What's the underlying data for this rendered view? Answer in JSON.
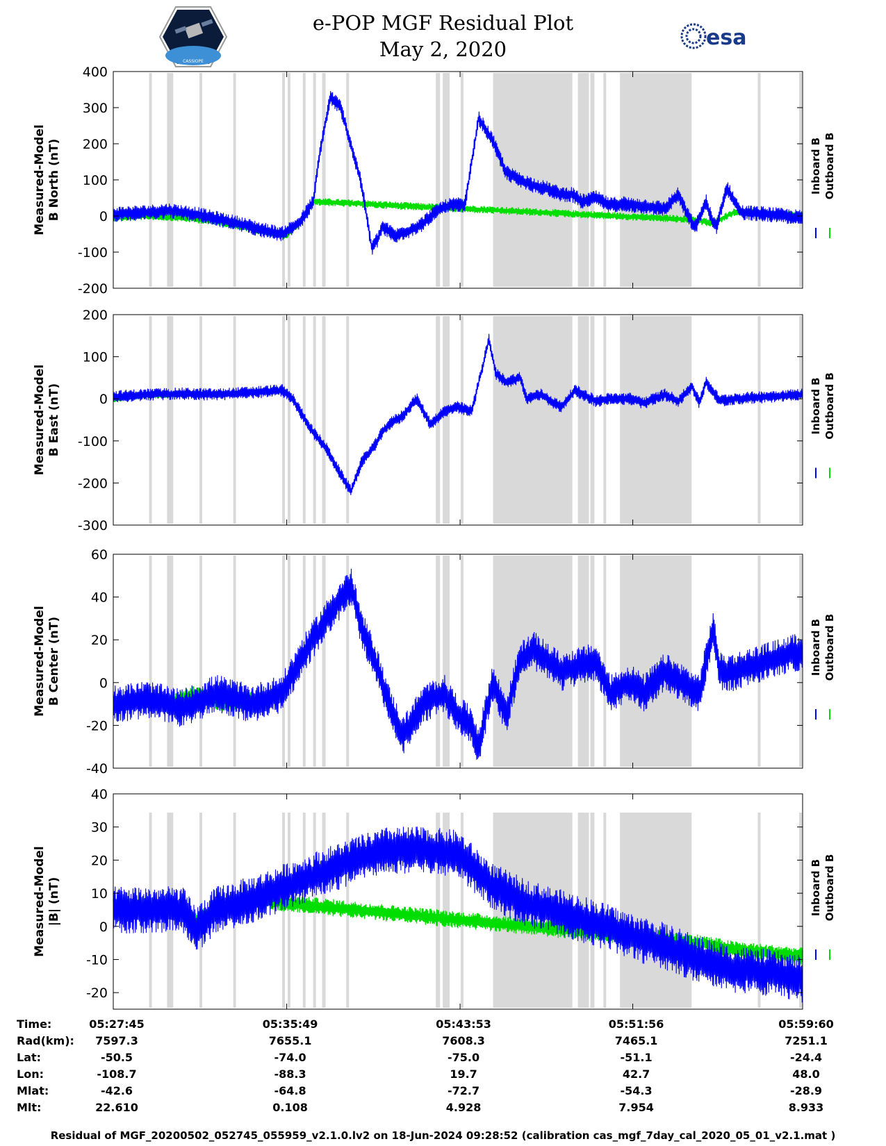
{
  "title": "e-POP MGF Residual Plot",
  "subtitle": "May 2, 2020",
  "esa_logo_text": "esa",
  "mission_logo_text": "CASSIOPE",
  "colors": {
    "inboard": "#0000ff",
    "outboard": "#00dd00",
    "shade": "#d9d9d9"
  },
  "chart_data": [
    {
      "type": "line",
      "ylabel": [
        "Measured-Model",
        "B North (nT)"
      ],
      "ylim": [
        -200,
        400
      ],
      "yticks": [
        -200,
        -100,
        0,
        100,
        200,
        300,
        400
      ],
      "legend": [
        "Inboard B",
        "Outboard B"
      ],
      "series": [
        {
          "name": "Inboard B",
          "x": [
            0,
            0.05,
            0.08,
            0.12,
            0.18,
            0.22,
            0.245,
            0.27,
            0.29,
            0.3,
            0.31,
            0.315,
            0.33,
            0.36,
            0.375,
            0.385,
            0.39,
            0.41,
            0.43,
            0.45,
            0.46,
            0.475,
            0.49,
            0.51,
            0.53,
            0.55,
            0.57,
            0.59,
            0.61,
            0.63,
            0.65,
            0.665,
            0.68,
            0.7,
            0.72,
            0.74,
            0.75,
            0.76,
            0.78,
            0.8,
            0.82,
            0.83,
            0.84,
            0.845,
            0.86,
            0.87,
            0.875,
            0.89,
            0.91,
            0.95,
            1.0
          ],
          "y": [
            5,
            10,
            15,
            5,
            -20,
            -40,
            -50,
            -20,
            40,
            180,
            280,
            330,
            300,
            90,
            -90,
            -60,
            -30,
            -55,
            -40,
            -20,
            0,
            20,
            30,
            30,
            270,
            210,
            120,
            100,
            85,
            75,
            60,
            60,
            40,
            50,
            30,
            35,
            30,
            30,
            25,
            20,
            60,
            15,
            -20,
            -30,
            40,
            -20,
            -30,
            80,
            10,
            5,
            -5
          ]
        },
        {
          "name": "Outboard B",
          "x": [
            0,
            0.05,
            0.1,
            0.15,
            0.2,
            0.25,
            0.27,
            0.29,
            0.84,
            0.87,
            0.9,
            0.95,
            1.0
          ],
          "y": [
            -5,
            0,
            -5,
            -15,
            -35,
            -55,
            -20,
            40,
            -10,
            -20,
            10,
            8,
            0
          ]
        }
      ]
    },
    {
      "type": "line",
      "ylabel": [
        "Measured-Model",
        "B East (nT)"
      ],
      "ylim": [
        -300,
        200
      ],
      "yticks": [
        -300,
        -200,
        -100,
        0,
        100,
        200
      ],
      "legend": [
        "Inboard B",
        "Outboard B"
      ],
      "series": [
        {
          "name": "Inboard B",
          "x": [
            0,
            0.05,
            0.1,
            0.15,
            0.2,
            0.245,
            0.26,
            0.29,
            0.31,
            0.33,
            0.345,
            0.36,
            0.38,
            0.39,
            0.4,
            0.42,
            0.44,
            0.46,
            0.48,
            0.5,
            0.52,
            0.545,
            0.555,
            0.57,
            0.59,
            0.6,
            0.62,
            0.65,
            0.67,
            0.7,
            0.72,
            0.75,
            0.77,
            0.8,
            0.82,
            0.84,
            0.85,
            0.86,
            0.88,
            0.9,
            0.95,
            1.0
          ],
          "y": [
            5,
            10,
            12,
            10,
            15,
            20,
            0,
            -80,
            -120,
            -180,
            -220,
            -150,
            -110,
            -80,
            -60,
            -40,
            0,
            -60,
            -30,
            -20,
            -30,
            140,
            60,
            40,
            50,
            0,
            10,
            -20,
            20,
            -5,
            0,
            0,
            -10,
            10,
            -5,
            30,
            -10,
            40,
            -5,
            0,
            5,
            10
          ]
        },
        {
          "name": "Outboard B",
          "x": [
            0,
            0.03,
            0.05,
            0.06,
            0.1
          ],
          "y": [
            0,
            5,
            10,
            10,
            10
          ]
        }
      ]
    },
    {
      "type": "line",
      "ylabel": [
        "Measured-Model",
        "B Center (nT)"
      ],
      "ylim": [
        -40,
        60
      ],
      "yticks": [
        -40,
        -20,
        0,
        20,
        40,
        60
      ],
      "legend": [
        "Inboard B",
        "Outboard B"
      ],
      "series": [
        {
          "name": "Inboard B",
          "x": [
            0,
            0.05,
            0.1,
            0.15,
            0.2,
            0.245,
            0.27,
            0.3,
            0.32,
            0.345,
            0.36,
            0.38,
            0.4,
            0.42,
            0.45,
            0.48,
            0.5,
            0.52,
            0.53,
            0.55,
            0.57,
            0.59,
            0.61,
            0.65,
            0.7,
            0.72,
            0.75,
            0.77,
            0.8,
            0.85,
            0.87,
            0.88,
            0.9,
            0.95,
            1.0
          ],
          "y": [
            -10,
            -8,
            -12,
            -5,
            -10,
            -5,
            10,
            25,
            35,
            45,
            25,
            10,
            -10,
            -25,
            -10,
            -5,
            -15,
            -20,
            -30,
            0,
            -15,
            10,
            15,
            5,
            10,
            -5,
            0,
            -5,
            5,
            -5,
            25,
            5,
            5,
            10,
            15
          ]
        },
        {
          "name": "Outboard B",
          "x": [
            0,
            0.04,
            0.08,
            0.12,
            0.16,
            0.2
          ],
          "y": [
            -10,
            -8,
            -10,
            -5,
            -10,
            -8
          ]
        }
      ]
    },
    {
      "type": "line",
      "ylabel": [
        "Measured-Model",
        "|B| (nT)"
      ],
      "ylim": [
        -25,
        40
      ],
      "yticks": [
        -20,
        -10,
        0,
        10,
        20,
        30,
        40
      ],
      "legend": [
        "Inboard B",
        "Outboard B"
      ],
      "series": [
        {
          "name": "Inboard B",
          "x": [
            0,
            0.05,
            0.1,
            0.12,
            0.15,
            0.2,
            0.25,
            0.3,
            0.35,
            0.4,
            0.45,
            0.5,
            0.55,
            0.6,
            0.65,
            0.7,
            0.75,
            0.8,
            0.85,
            0.9,
            0.95,
            1.0
          ],
          "y": [
            5,
            5,
            5,
            -1,
            5,
            8,
            12,
            16,
            20,
            23,
            23,
            22,
            12,
            7,
            4,
            1,
            -3,
            -6,
            -10,
            -13,
            -14,
            -16
          ]
        },
        {
          "name": "Outboard B",
          "x": [
            0,
            0.05,
            0.1,
            0.12,
            0.15,
            0.2,
            0.85,
            0.9,
            0.95,
            1.0
          ],
          "y": [
            6,
            6,
            5,
            2,
            5,
            8,
            -5,
            -7,
            -8,
            -9
          ]
        }
      ]
    }
  ],
  "orbit_table": {
    "labels": [
      "Time:",
      "Rad(km):",
      "Lat:",
      "Lon:",
      "Mlat:",
      "Mlt:"
    ],
    "columns": [
      [
        "05:27:45",
        "7597.3",
        "-50.5",
        "-108.7",
        "-42.6",
        "22.610"
      ],
      [
        "05:35:49",
        "7655.1",
        "-74.0",
        "-88.3",
        "-64.8",
        "0.108"
      ],
      [
        "05:43:53",
        "7608.3",
        "-75.0",
        "19.7",
        "-72.7",
        "4.928"
      ],
      [
        "05:51:56",
        "7465.1",
        "-51.1",
        "42.7",
        "-54.3",
        "7.954"
      ],
      [
        "05:59:60",
        "7251.1",
        "-24.4",
        "48.0",
        "-28.9",
        "8.933"
      ]
    ]
  },
  "footer": "Residual of MGF_20200502_052745_055959_v2.1.0.lv2 on 18-Jun-2024 09:28:52 (calibration cas_mgf_7day_cal_2020_05_01_v2.1.mat )"
}
